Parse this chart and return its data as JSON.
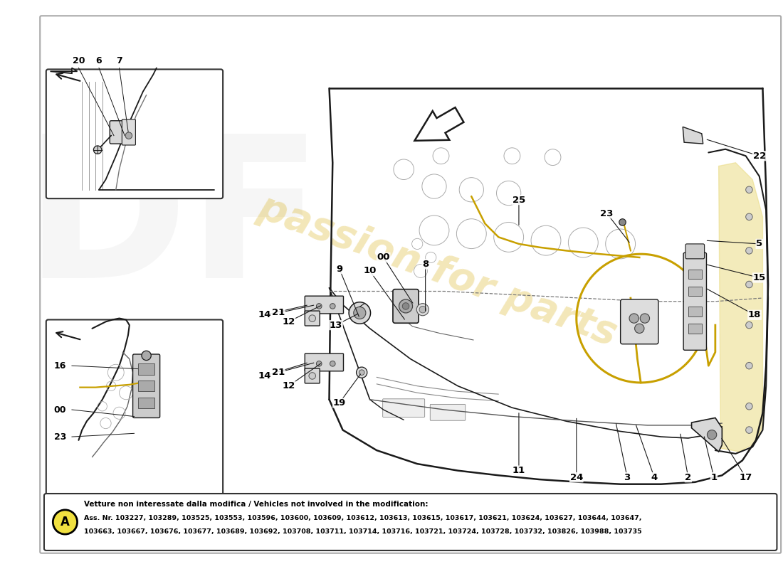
{
  "bg_color": "#ffffff",
  "line_color": "#1a1a1a",
  "light_gray": "#d8d8d8",
  "mid_gray": "#aaaaaa",
  "yellow_cable": "#c8a000",
  "yellow_highlight": "#e8d060",
  "watermark_color": "#d4a800",
  "watermark_alpha": 0.28,
  "badge_color": "#f0e040",
  "note_title": "Vetture non interessate dalla modifica / Vehicles not involved in the modification:",
  "note_line1": "Ass. Nr. 103227, 103289, 103525, 103553, 103596, 103600, 103609, 103612, 103613, 103615, 103617, 103621, 103624, 103627, 103644, 103647,",
  "note_line2": "103663, 103667, 103676, 103677, 103689, 103692, 103708, 103711, 103714, 103716, 103721, 103724, 103728, 103732, 103826, 103988, 103735"
}
